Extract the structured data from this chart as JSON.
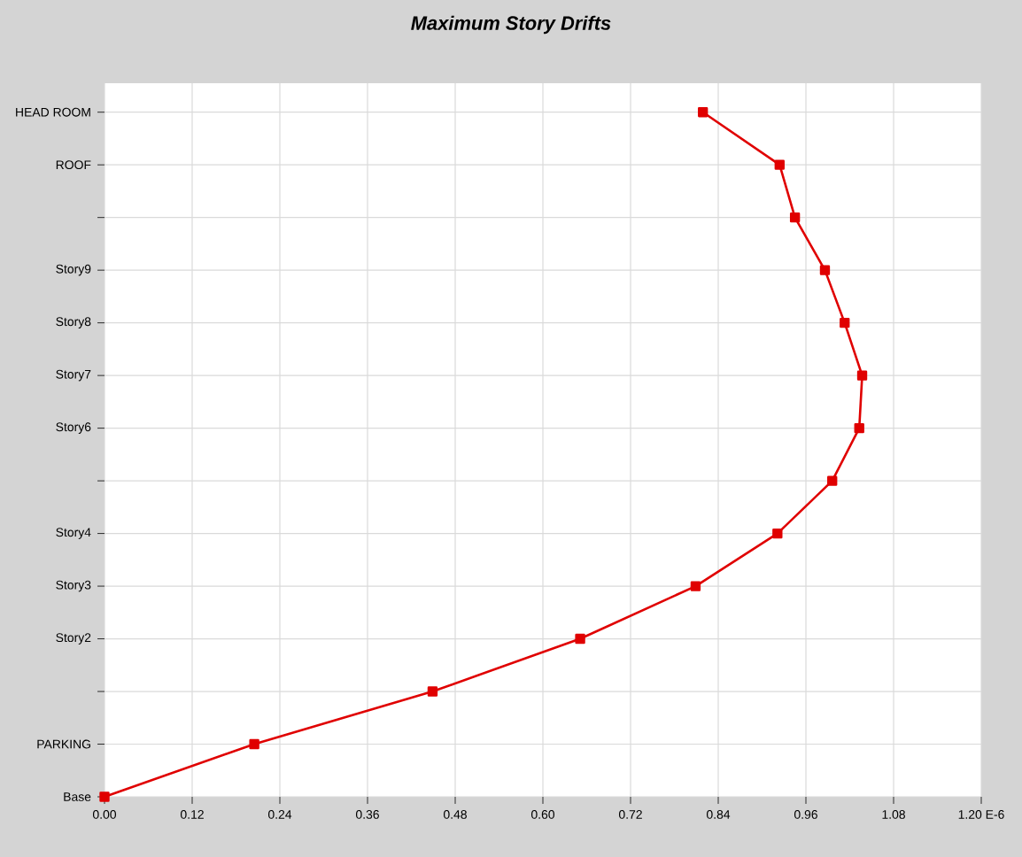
{
  "chart_data": {
    "type": "line",
    "title": "Maximum Story Drifts",
    "orientation": "horizontal",
    "categories": [
      "HEAD ROOM",
      "ROOF",
      null,
      "Story9",
      "Story8",
      "Story7",
      "Story6",
      null,
      "Story4",
      "Story3",
      "Story2",
      null,
      "PARKING",
      "Base"
    ],
    "series": [
      {
        "color": "#e00000",
        "values": [
          0.819,
          0.924,
          0.945,
          0.986,
          1.013,
          1.037,
          1.033,
          0.996,
          0.921,
          0.809,
          0.651,
          0.449,
          0.205,
          0
        ]
      }
    ],
    "xlim": [
      0,
      1.2
    ],
    "xticks": [
      {
        "value": 0,
        "label": "0.00"
      },
      0.12,
      0.24,
      0.36,
      0.48,
      {
        "value": 0.6,
        "label": "0.60"
      },
      0.72,
      0.84,
      0.96,
      1.08,
      {
        "value": 1.2,
        "label": "1.20 E-6"
      }
    ],
    "grid": true,
    "marker": "square",
    "line_style": "solid"
  }
}
